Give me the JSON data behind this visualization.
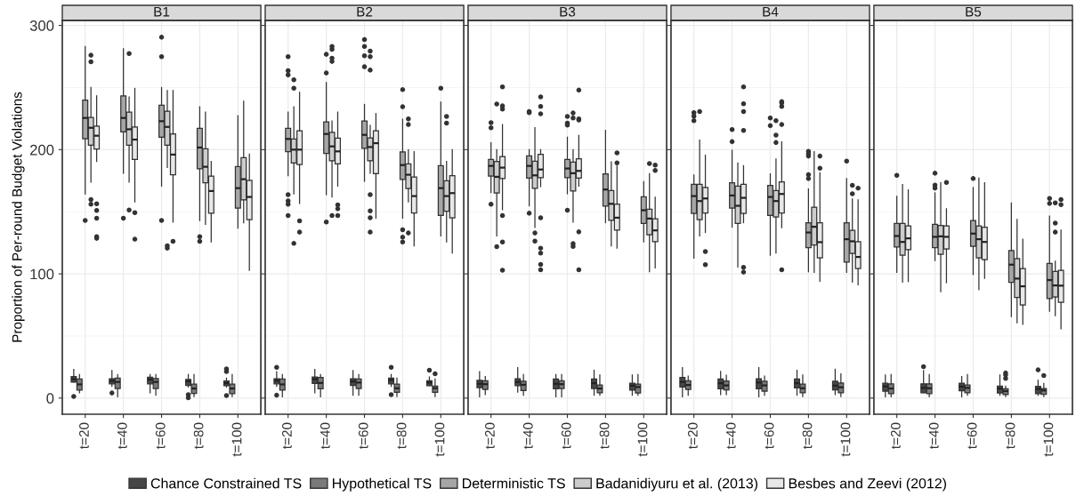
{
  "chart_data": [
    {
      "type": "box",
      "title": "B1",
      "ylabel": "Proportion of Per-round Budget Violations",
      "categories": [
        "t=20",
        "t=40",
        "t=60",
        "t=80",
        "t=100"
      ],
      "ylim": [
        -13,
        304
      ],
      "yticks": [
        0,
        100,
        200,
        300
      ],
      "grid": true,
      "legend": "bottom",
      "series": [
        {
          "name": "Chance Constrained TS",
          "color": "#474747",
          "boxes": [
            {
              "low": 12.8,
              "q1": 12.8,
              "median": 15.3,
              "q3": 17.3,
              "high": 23,
              "outliers": [
                1.3
              ]
            },
            {
              "low": 9.4,
              "q1": 11.5,
              "median": 13.8,
              "q3": 15.6,
              "high": 22.2,
              "outliers": [
                4.1
              ]
            },
            {
              "low": 4.3,
              "q1": 11.5,
              "median": 15,
              "q3": 16.8,
              "high": 19
            },
            {
              "low": 8.9,
              "q1": 10.2,
              "median": 13.5,
              "q3": 15,
              "high": 19,
              "outliers": [
                2.8,
                0.3
              ]
            },
            {
              "low": 8.9,
              "q1": 10,
              "median": 12,
              "q3": 13.8,
              "high": 16,
              "outliers": [
                23.5,
                21.4,
                2
              ]
            }
          ]
        },
        {
          "name": "Hypothetical TS",
          "color": "#7a7a7a",
          "boxes": [
            {
              "low": 4.3,
              "q1": 6.4,
              "median": 11,
              "q3": 15.3,
              "high": 19
            },
            {
              "low": 1,
              "q1": 7.7,
              "median": 13,
              "q3": 16,
              "high": 19
            },
            {
              "low": 2.3,
              "q1": 7.7,
              "median": 13,
              "q3": 15.8,
              "high": 19
            },
            {
              "low": 1.3,
              "q1": 3.8,
              "median": 7.7,
              "q3": 11.2,
              "high": 19
            },
            {
              "low": 1.3,
              "q1": 3.6,
              "median": 7.7,
              "q3": 11.2,
              "high": 19
            }
          ]
        },
        {
          "name": "Deterministic TS",
          "color": "#a6a6a6",
          "boxes": [
            {
              "low": 164.3,
              "q1": 208.8,
              "median": 225.5,
              "q3": 239.8,
              "high": 282.9,
              "outliers": [
                143
              ]
            },
            {
              "low": 181,
              "q1": 214.3,
              "median": 225.5,
              "q3": 243.3,
              "high": 281.2,
              "outliers": [
                144.8
              ]
            },
            {
              "low": 170.7,
              "q1": 210,
              "median": 222.9,
              "q3": 235.7,
              "high": 250,
              "outliers": [
                290.5,
                274.8,
                143
              ]
            },
            {
              "low": 142.9,
              "q1": 184.5,
              "median": 201.7,
              "q3": 217.1,
              "high": 234.5,
              "outliers": [
                130,
                126.2
              ]
            },
            {
              "low": 136.9,
              "q1": 152.9,
              "median": 169,
              "q3": 186.4,
              "high": 227.4
            }
          ]
        },
        {
          "name": "Badanidiyuru et al. (2013)",
          "color": "#cccccc",
          "boxes": [
            {
              "low": 173.8,
              "q1": 203.6,
              "median": 217.6,
              "q3": 226,
              "high": 250,
              "outliers": [
                276,
                270.7,
                159.8,
                156
              ]
            },
            {
              "low": 173.8,
              "q1": 203.6,
              "median": 216.4,
              "q3": 230.2,
              "high": 242.4,
              "outliers": [
                277.4,
                151.4
              ]
            },
            {
              "low": 185.7,
              "q1": 203.6,
              "median": 218.3,
              "q3": 231,
              "high": 247.6,
              "outliers": [
                122.6,
                120.7
              ]
            },
            {
              "low": 139.8,
              "q1": 173.3,
              "median": 186.2,
              "q3": 200.7,
              "high": 230.2
            },
            {
              "low": 141.2,
              "q1": 159.5,
              "median": 176.2,
              "q3": 193.6,
              "high": 239
            }
          ]
        },
        {
          "name": "Besbes and Zeevi (2012)",
          "color": "#e8e8e8",
          "boxes": [
            {
              "low": 190.5,
              "q1": 200.5,
              "median": 211.2,
              "q3": 219,
              "high": 243.3,
              "outliers": [
                156.4,
                151,
                144.8,
                130,
                128.6
              ]
            },
            {
              "low": 157.9,
              "q1": 192.1,
              "median": 208.1,
              "q3": 218.3,
              "high": 249.3,
              "outliers": [
                149.3,
                127.9
              ]
            },
            {
              "low": 141.7,
              "q1": 179.8,
              "median": 196,
              "q3": 212.6,
              "high": 247.6,
              "outliers": [
                126.2
              ]
            },
            {
              "low": 125.7,
              "q1": 148.8,
              "median": 166.7,
              "q3": 178.6,
              "high": 190.5
            },
            {
              "low": 102.9,
              "q1": 143.6,
              "median": 161.9,
              "q3": 175.2,
              "high": 196.4
            }
          ]
        }
      ]
    },
    {
      "type": "box",
      "title": "B2",
      "categories": [
        "t=20",
        "t=40",
        "t=60",
        "t=80",
        "t=100"
      ],
      "ylim": [
        -13,
        304
      ],
      "yticks": [
        0,
        100,
        200,
        300
      ],
      "grid": true,
      "tick_labels": "x",
      "series": [
        {
          "color": "#474747",
          "boxes": [
            {
              "low": 9.4,
              "q1": 11.5,
              "median": 14,
              "q3": 15.6,
              "high": 21.2,
              "outliers": [
                24.7,
                2.3
              ]
            },
            {
              "low": 4.3,
              "q1": 11.7,
              "median": 15.3,
              "q3": 17,
              "high": 23
            },
            {
              "low": 2.3,
              "q1": 10.2,
              "median": 13.5,
              "q3": 15.6,
              "high": 22.2
            },
            {
              "low": 9.4,
              "q1": 11.5,
              "median": 14.5,
              "q3": 16,
              "high": 19,
              "outliers": [
                24.7,
                2.8
              ]
            },
            {
              "low": 10,
              "q1": 10,
              "median": 12.5,
              "q3": 14,
              "high": 17,
              "outliers": [
                22.4
              ]
            }
          ]
        },
        {
          "color": "#7a7a7a",
          "boxes": [
            {
              "low": 1,
              "q1": 6.4,
              "median": 11,
              "q3": 15.3,
              "high": 19
            },
            {
              "low": 1,
              "q1": 7.4,
              "median": 12.2,
              "q3": 16.6,
              "high": 19
            },
            {
              "low": 2.3,
              "q1": 7.7,
              "median": 12.5,
              "q3": 15.3,
              "high": 19
            },
            {
              "low": 1.3,
              "q1": 4.6,
              "median": 7.9,
              "q3": 11.2,
              "high": 16
            },
            {
              "low": 1.3,
              "q1": 4.6,
              "median": 7.9,
              "q3": 9.7,
              "high": 15.3,
              "outliers": [
                19.6
              ]
            }
          ]
        },
        {
          "color": "#a6a6a6",
          "boxes": [
            {
              "low": 179,
              "q1": 198.3,
              "median": 208.6,
              "q3": 217.1,
              "high": 230.2,
              "outliers": [
                274.8,
                263.6,
                260.2,
                163.8,
                158.8,
                156,
                146.9
              ]
            },
            {
              "low": 163.8,
              "q1": 196.9,
              "median": 212.6,
              "q3": 222.4,
              "high": 254,
              "outliers": [
                276.7,
                261.7,
                141.7
              ]
            },
            {
              "low": 174.5,
              "q1": 201,
              "median": 211.9,
              "q3": 223.1,
              "high": 236.4,
              "outliers": [
                288.6,
                283.1,
                275.5,
                266.7
              ]
            },
            {
              "low": 144.8,
              "q1": 176,
              "median": 187.6,
              "q3": 198.1,
              "high": 224.5,
              "outliers": [
                248.3,
                234.5,
                135.5,
                129.5,
                125.7
              ]
            },
            {
              "low": 130.5,
              "q1": 147.1,
              "median": 169,
              "q3": 187.1,
              "high": 238.3,
              "outliers": [
                249.5
              ]
            }
          ]
        },
        {
          "color": "#cccccc",
          "boxes": [
            {
              "low": 164.3,
              "q1": 189.3,
              "median": 200,
              "q3": 208.6,
              "high": 234.5,
              "outliers": [
                256.2,
                249.5,
                124.5
              ]
            },
            {
              "low": 161.9,
              "q1": 191,
              "median": 202.6,
              "q3": 214,
              "high": 223.1,
              "outliers": [
                283.1,
                280.7,
                273.6,
                271,
                146.9
              ]
            },
            {
              "low": 181,
              "q1": 191,
              "median": 202.1,
              "q3": 209.5,
              "high": 219.5,
              "outliers": [
                279.3,
                274.8,
                264,
                163.8,
                150.7,
                145.2,
                133.6
              ]
            },
            {
              "low": 158,
              "q1": 168.6,
              "median": 179.8,
              "q3": 188.6,
              "high": 200,
              "outliers": [
                224.8,
                220.2,
                132.9
              ]
            },
            {
              "low": 125.7,
              "q1": 150.5,
              "median": 162.6,
              "q3": 175,
              "high": 190.5,
              "outliers": [
                226.7,
                221.4
              ]
            }
          ]
        },
        {
          "color": "#e8e8e8",
          "boxes": [
            {
              "low": 156.7,
              "q1": 187.9,
              "median": 200,
              "q3": 215.2,
              "high": 246.2,
              "outliers": [
                142.6,
                133.6
              ]
            },
            {
              "low": 170.7,
              "q1": 188.6,
              "median": 198.6,
              "q3": 209.3,
              "high": 230.2,
              "outliers": [
                155.5,
                152.4,
                146.9
              ]
            },
            {
              "low": 144.8,
              "q1": 180.7,
              "median": 205.2,
              "q3": 215.2,
              "high": 229
            },
            {
              "low": 122.6,
              "q1": 149,
              "median": 162.6,
              "q3": 177.9,
              "high": 198.3
            },
            {
              "low": 116.7,
              "q1": 145,
              "median": 165,
              "q3": 179,
              "high": 200
            }
          ]
        }
      ]
    },
    {
      "type": "box",
      "title": "B3",
      "categories": [
        "t=20",
        "t=40",
        "t=60",
        "t=80",
        "t=100"
      ],
      "ylim": [
        -13,
        304
      ],
      "yticks": [
        0,
        100,
        200,
        300
      ],
      "grid": true,
      "tick_labels": "x",
      "series": [
        {
          "color": "#474747",
          "boxes": [
            {
              "low": 1,
              "q1": 8.4,
              "median": 11.5,
              "q3": 14.3,
              "high": 21.2
            },
            {
              "low": 4.8,
              "q1": 10,
              "median": 13,
              "q3": 15.6,
              "high": 24.5
            },
            {
              "low": 1,
              "q1": 7.4,
              "median": 11.5,
              "q3": 15.3,
              "high": 19
            },
            {
              "low": 2.3,
              "q1": 7.7,
              "median": 12,
              "q3": 15.3,
              "high": 22.4
            },
            {
              "low": 2.3,
              "q1": 6.4,
              "median": 10,
              "q3": 12,
              "high": 18.6
            }
          ]
        },
        {
          "color": "#7a7a7a",
          "boxes": [
            {
              "low": 2.8,
              "q1": 6.9,
              "median": 11.2,
              "q3": 14,
              "high": 17.3
            },
            {
              "low": 2.3,
              "q1": 6.1,
              "median": 10.7,
              "q3": 13.5,
              "high": 19
            },
            {
              "low": 1,
              "q1": 7.7,
              "median": 11.2,
              "q3": 14,
              "high": 19
            },
            {
              "low": 2.3,
              "q1": 4.3,
              "median": 7.7,
              "q3": 10.5,
              "high": 18.6
            },
            {
              "low": 2.3,
              "q1": 4.1,
              "median": 8.9,
              "q3": 11.2,
              "high": 19
            }
          ]
        },
        {
          "color": "#a6a6a6",
          "boxes": [
            {
              "low": 165.5,
              "q1": 178.6,
              "median": 186.9,
              "q3": 192.1,
              "high": 205.5,
              "outliers": [
                221.7,
                217.6,
                156
              ]
            },
            {
              "low": 154.8,
              "q1": 177.1,
              "median": 186.9,
              "q3": 195,
              "high": 200,
              "outliers": [
                230.7,
                229.8,
                148.8
              ]
            },
            {
              "low": 164.5,
              "q1": 177.4,
              "median": 184.8,
              "q3": 192.1,
              "high": 210,
              "outliers": [
                226.7,
                221.4,
                219.8,
                151.2
              ]
            },
            {
              "low": 141.2,
              "q1": 154.5,
              "median": 167.9,
              "q3": 180.5,
              "high": 215.5
            },
            {
              "low": 125.7,
              "q1": 140.5,
              "median": 151.2,
              "q3": 162.1,
              "high": 174.3
            }
          ]
        },
        {
          "color": "#cccccc",
          "boxes": [
            {
              "low": 130.5,
              "q1": 165,
              "median": 178.1,
              "q3": 190.5,
              "high": 200,
              "outliers": [
                236.7,
                121.9
              ]
            },
            {
              "low": 137.4,
              "q1": 168.8,
              "median": 179.3,
              "q3": 190.7,
              "high": 217.6,
              "outliers": [
                132.9,
                126.4
              ]
            },
            {
              "low": 141.7,
              "q1": 166.7,
              "median": 181,
              "q3": 190,
              "high": 200,
              "outliers": [
                229.5,
                225.5,
                124.3,
                122.1
              ]
            },
            {
              "low": 122.6,
              "q1": 143.1,
              "median": 156.4,
              "q3": 167.1,
              "high": 190.2
            },
            {
              "low": 101.7,
              "q1": 131.4,
              "median": 144.5,
              "q3": 152.1,
              "high": 180.7,
              "outliers": [
                188.8
              ]
            }
          ]
        },
        {
          "color": "#e8e8e8",
          "boxes": [
            {
              "low": 151.7,
              "q1": 176.7,
              "median": 185.5,
              "q3": 194.5,
              "high": 220.2,
              "outliers": [
                250.5,
                235.2,
                232.6,
                146.9,
                125.7,
                102.9
              ]
            },
            {
              "low": 170.2,
              "q1": 177.4,
              "median": 184,
              "q3": 196.2,
              "high": 200,
              "outliers": [
                242.4,
                234.8,
                228.8,
                145.2,
                120.7,
                116.7,
                107.6,
                103.3
              ]
            },
            {
              "low": 170.7,
              "q1": 177.1,
              "median": 182.9,
              "q3": 192.6,
              "high": 211.4,
              "outliers": [
                247.9,
                224.8,
                223.8,
                133.8,
                103.3
              ]
            },
            {
              "low": 120.7,
              "q1": 135.2,
              "median": 145.2,
              "q3": 156.2,
              "high": 186.7,
              "outliers": [
                197.4,
                189.3
              ]
            },
            {
              "low": 104.8,
              "q1": 126,
              "median": 135,
              "q3": 144.3,
              "high": 161.7,
              "outliers": [
                187.6,
                183.3
              ]
            }
          ]
        }
      ]
    },
    {
      "type": "box",
      "title": "B4",
      "categories": [
        "t=20",
        "t=40",
        "t=60",
        "t=80",
        "t=100"
      ],
      "ylim": [
        -13,
        304
      ],
      "yticks": [
        0,
        100,
        200,
        300
      ],
      "grid": true,
      "tick_labels": "x",
      "series": [
        {
          "color": "#474747",
          "boxes": [
            {
              "low": 1,
              "q1": 8.9,
              "median": 13,
              "q3": 16.6,
              "high": 24.5
            },
            {
              "low": 2.8,
              "q1": 7.4,
              "median": 12,
              "q3": 15.3,
              "high": 21.4
            },
            {
              "low": 1,
              "q1": 7.4,
              "median": 12.5,
              "q3": 15.6,
              "high": 24.5
            },
            {
              "low": 2.3,
              "q1": 8.2,
              "median": 12,
              "q3": 15.3,
              "high": 22.4
            },
            {
              "low": 2.8,
              "q1": 6.6,
              "median": 10,
              "q3": 13.5,
              "high": 23.2
            }
          ]
        },
        {
          "color": "#7a7a7a",
          "boxes": [
            {
              "low": 2.3,
              "q1": 6.9,
              "median": 10.5,
              "q3": 14,
              "high": 17.6
            },
            {
              "low": 2.8,
              "q1": 6.6,
              "median": 10.2,
              "q3": 13.8,
              "high": 18.4
            },
            {
              "low": 2.3,
              "q1": 5.6,
              "median": 10.2,
              "q3": 13.5,
              "high": 17.6
            },
            {
              "low": 1.3,
              "q1": 4.3,
              "median": 7.9,
              "q3": 11.2,
              "high": 18.6
            },
            {
              "low": 1.3,
              "q1": 4.3,
              "median": 8.7,
              "q3": 12.2,
              "high": 19.4
            }
          ]
        },
        {
          "color": "#a6a6a6",
          "boxes": [
            {
              "low": 112.6,
              "q1": 148.6,
              "median": 162.6,
              "q3": 172.1,
              "high": 179.5,
              "outliers": [
                229.8,
                226.9,
                223.3
              ]
            },
            {
              "low": 137.6,
              "q1": 152.9,
              "median": 163.1,
              "q3": 173.3,
              "high": 199.5,
              "outliers": [
                216.2,
                206.4
              ]
            },
            {
              "low": 115,
              "q1": 147.1,
              "median": 161.9,
              "q3": 171.2,
              "high": 180.5,
              "outliers": [
                225.5,
                219.3
              ]
            },
            {
              "low": 101.7,
              "q1": 121,
              "median": 133.3,
              "q3": 141.2,
              "high": 168.3,
              "outliers": [
                198.6,
                196.7,
                194.8,
                179.8,
                176.7
              ]
            },
            {
              "low": 101.2,
              "q1": 109.5,
              "median": 127.9,
              "q3": 141.2,
              "high": 176.7,
              "outliers": [
                190.7
              ]
            }
          ]
        },
        {
          "color": "#cccccc",
          "boxes": [
            {
              "low": 130.5,
              "q1": 143.6,
              "median": 158.6,
              "q3": 172.1,
              "high": 207.6,
              "outliers": [
                230.7
              ]
            },
            {
              "low": 105.5,
              "q1": 140.5,
              "median": 154.8,
              "q3": 170.7,
              "high": 189.3
            },
            {
              "low": 116.7,
              "q1": 145.7,
              "median": 158.6,
              "q3": 167.1,
              "high": 192.4,
              "outliers": [
                223.3,
                211.7,
                205.7
              ]
            },
            {
              "low": 101.2,
              "q1": 123.3,
              "median": 137.9,
              "q3": 153.6,
              "high": 198.3
            },
            {
              "low": 93.3,
              "q1": 116.4,
              "median": 126.2,
              "q3": 135,
              "high": 160.2,
              "outliers": [
                171.2,
                164.5
              ]
            }
          ]
        },
        {
          "color": "#e8e8e8",
          "boxes": [
            {
              "low": 133.3,
              "q1": 149,
              "median": 160.7,
              "q3": 169.5,
              "high": 195.5,
              "outliers": [
                117.9,
                107.4
              ]
            },
            {
              "low": 141.2,
              "q1": 148.6,
              "median": 161.2,
              "q3": 172.1,
              "high": 187.1,
              "outliers": [
                250.5,
                236.9,
                230.7,
                215.5,
                105.2,
                101.4
              ]
            },
            {
              "low": 137.1,
              "q1": 149,
              "median": 164.3,
              "q3": 174,
              "high": 206.2,
              "outliers": [
                238.6,
                237.6,
                234.8,
                220.2,
                103.3
              ]
            },
            {
              "low": 94.1,
              "q1": 112.9,
              "median": 125.5,
              "q3": 141.2,
              "high": 181.4,
              "outliers": [
                194.8,
                185
              ]
            },
            {
              "low": 91.2,
              "q1": 104.3,
              "median": 113.6,
              "q3": 126,
              "high": 159.5,
              "outliers": [
                169
              ]
            }
          ]
        }
      ]
    },
    {
      "type": "box",
      "title": "B5",
      "categories": [
        "t=20",
        "t=40",
        "t=60",
        "t=80",
        "t=100"
      ],
      "ylim": [
        -13,
        304
      ],
      "yticks": [
        0,
        100,
        200,
        300
      ],
      "grid": true,
      "tick_labels": "x",
      "series": [
        {
          "color": "#474747",
          "boxes": [
            {
              "low": 1,
              "q1": 5.6,
              "median": 9.4,
              "q3": 12,
              "high": 18.6
            },
            {
              "low": 4.3,
              "q1": 4.3,
              "median": 8.2,
              "q3": 11.5,
              "high": 22.2,
              "outliers": [
                25.3
              ]
            },
            {
              "low": 1,
              "q1": 5.9,
              "median": 9.2,
              "q3": 12,
              "high": 17.3
            },
            {
              "low": 2.3,
              "q1": 4.1,
              "median": 7.7,
              "q3": 9.7,
              "high": 18.6
            },
            {
              "low": 2.3,
              "q1": 3.6,
              "median": 7.4,
              "q3": 9.4,
              "high": 14.3,
              "outliers": [
                22.7
              ]
            }
          ]
        },
        {
          "color": "#7a7a7a",
          "boxes": [
            {
              "low": 1,
              "q1": 3.6,
              "median": 7.7,
              "q3": 11.5,
              "high": 19
            },
            {
              "low": 1,
              "q1": 3.6,
              "median": 7.9,
              "q3": 11.5,
              "high": 19
            },
            {
              "low": 2.3,
              "q1": 4.3,
              "median": 8.2,
              "q3": 10.5,
              "high": 19
            },
            {
              "low": 1.3,
              "q1": 2.8,
              "median": 5.6,
              "q3": 7.4,
              "high": 9.7,
              "outliers": [
                20.2,
                18.6,
                15.8
              ]
            },
            {
              "low": 1.3,
              "q1": 3.1,
              "median": 6.1,
              "q3": 7.7,
              "high": 11.7,
              "outliers": [
                18.1
              ]
            }
          ]
        },
        {
          "color": "#a6a6a6",
          "boxes": [
            {
              "low": 101.2,
              "q1": 121.7,
              "median": 130.5,
              "q3": 140.5,
              "high": 162.4,
              "outliers": [
                179.3
              ]
            },
            {
              "low": 110.7,
              "q1": 121,
              "median": 129.8,
              "q3": 139.8,
              "high": 165.2,
              "outliers": [
                181,
                171.4,
                169
              ]
            },
            {
              "low": 99.5,
              "q1": 122.1,
              "median": 132.4,
              "q3": 142.9,
              "high": 169.5,
              "outliers": [
                176.7
              ]
            },
            {
              "low": 65.7,
              "q1": 93.1,
              "median": 107.4,
              "q3": 118.8,
              "high": 157.1
            },
            {
              "low": 70,
              "q1": 80.2,
              "median": 95,
              "q3": 108.3,
              "high": 146.4,
              "outliers": [
                160.7,
                156.7
              ]
            }
          ]
        },
        {
          "color": "#cccccc",
          "boxes": [
            {
              "low": 93.3,
              "q1": 115,
              "median": 125.7,
              "q3": 140.5,
              "high": 171.9
            },
            {
              "low": 85.7,
              "q1": 115.7,
              "median": 130.2,
              "q3": 139,
              "high": 173.3
            },
            {
              "low": 87.3,
              "q1": 112.9,
              "median": 127.9,
              "q3": 138.6,
              "high": 177.1
            },
            {
              "low": 60.7,
              "q1": 81,
              "median": 96.2,
              "q3": 112.4,
              "high": 143.8
            },
            {
              "low": 66.4,
              "q1": 81.4,
              "median": 90.7,
              "q3": 101.9,
              "high": 110.2,
              "outliers": [
                157.1,
                140.9,
                133.6
              ]
            }
          ]
        },
        {
          "color": "#e8e8e8",
          "boxes": [
            {
              "low": 93.8,
              "q1": 119.5,
              "median": 128.6,
              "q3": 138.6,
              "high": 167.6
            },
            {
              "low": 92.9,
              "q1": 120,
              "median": 129.8,
              "q3": 138.6,
              "high": 152.4,
              "outliers": [
                173.6
              ]
            },
            {
              "low": 96.4,
              "q1": 111.4,
              "median": 125.7,
              "q3": 137.6,
              "high": 173.3
            },
            {
              "low": 59.3,
              "q1": 75,
              "median": 90,
              "q3": 104.3,
              "high": 127.9
            },
            {
              "low": 55.7,
              "q1": 77,
              "median": 90.5,
              "q3": 102.9,
              "high": 135.2,
              "outliers": [
                159.8,
                155.7
              ]
            }
          ]
        }
      ]
    }
  ]
}
